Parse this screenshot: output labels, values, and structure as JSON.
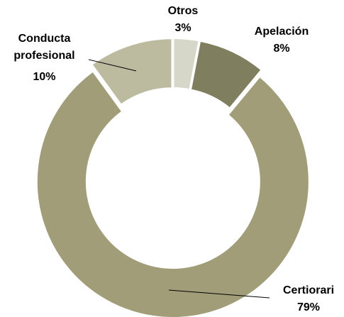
{
  "chart_data": {
    "type": "donut",
    "categories": [
      "Otros",
      "Apelación",
      "Certiorari",
      "Conducta profesional"
    ],
    "values": [
      3,
      8,
      79,
      10
    ],
    "value_labels": [
      "3%",
      "8%",
      "79%",
      "10%"
    ],
    "colors": [
      "#d7d7c9",
      "#7f7e5e",
      "#a09d78",
      "#bdbb9f"
    ]
  }
}
